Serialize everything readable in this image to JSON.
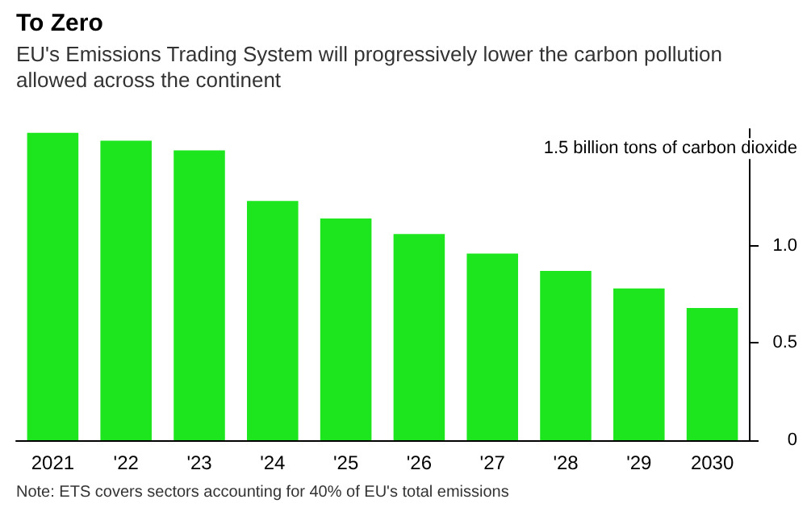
{
  "chart_data": {
    "type": "bar",
    "title": "To Zero",
    "subtitle": "EU's Emissions Trading System will progressively lower the carbon pollution allowed across the continent",
    "annotations": [
      "Note: ETS covers sectors accounting for 40% of EU's total emissions"
    ],
    "categories": [
      "2021",
      "'22",
      "'23",
      "'24",
      "'25",
      "'26",
      "'27",
      "'28",
      "'29",
      "2030"
    ],
    "values": [
      1.58,
      1.54,
      1.49,
      1.23,
      1.14,
      1.06,
      0.96,
      0.87,
      0.78,
      0.68
    ],
    "color": "#1ee61e",
    "ylim": [
      0,
      1.6
    ],
    "yticks": [
      0,
      0.5,
      {
        "value": 1,
        "label": "1.0"
      },
      {
        "value": 1.5,
        "label": "1.5 billion tons of carbon dioxide"
      }
    ],
    "grid": false
  }
}
